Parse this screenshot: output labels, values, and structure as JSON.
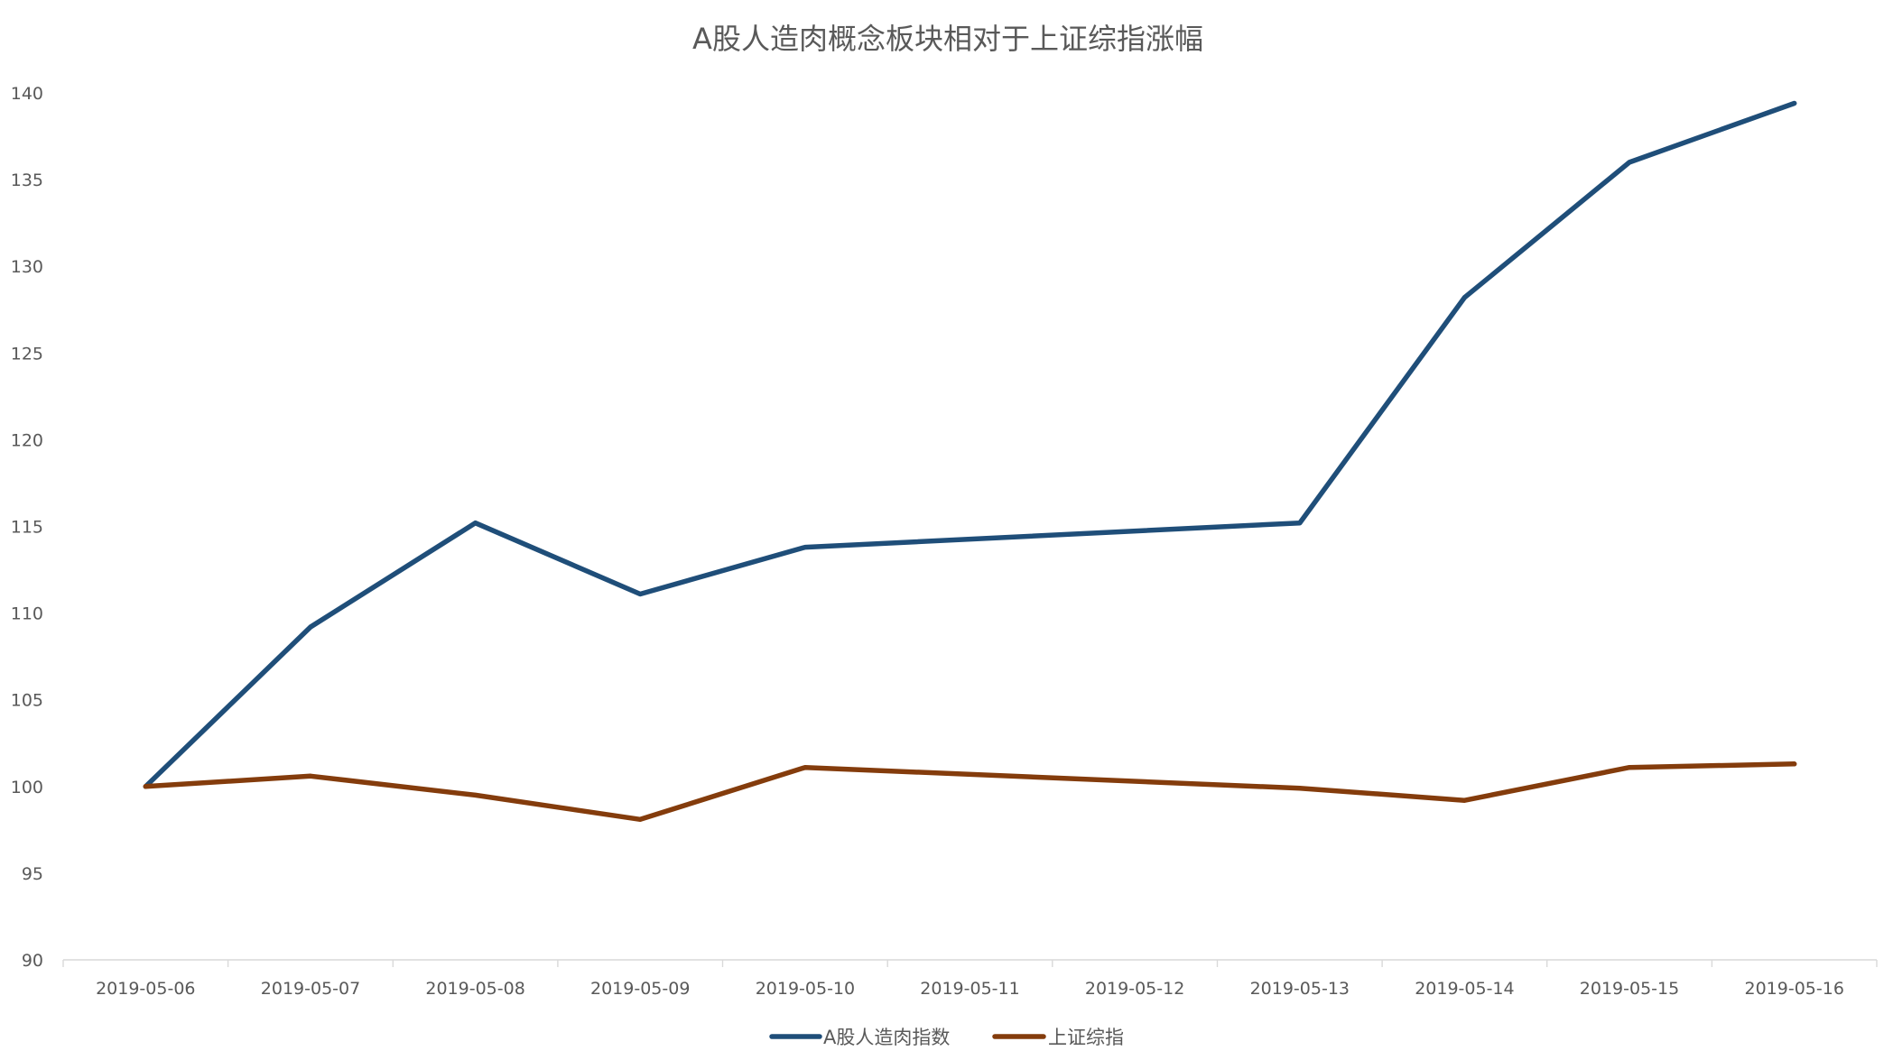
{
  "chart_data": {
    "type": "line",
    "title": "A股人造肉概念板块相对于上证综指涨幅",
    "categories": [
      "2019-05-06",
      "2019-05-07",
      "2019-05-08",
      "2019-05-09",
      "2019-05-10",
      "2019-05-11",
      "2019-05-12",
      "2019-05-13",
      "2019-05-14",
      "2019-05-15",
      "2019-05-16"
    ],
    "series": [
      {
        "name": "A股人造肉指数",
        "color": "#1f4e79",
        "values": [
          100,
          109.2,
          115.2,
          111.1,
          113.8,
          null,
          null,
          115.2,
          128.2,
          136.0,
          139.4
        ]
      },
      {
        "name": "上证综指",
        "color": "#843c0c",
        "values": [
          100,
          100.6,
          99.5,
          98.1,
          101.1,
          null,
          null,
          99.9,
          99.2,
          101.1,
          101.3
        ]
      }
    ],
    "ylim": [
      90,
      140
    ],
    "yticks": [
      90,
      95,
      100,
      105,
      110,
      115,
      120,
      125,
      130,
      135,
      140
    ],
    "grid": false,
    "legend": "bottom"
  }
}
